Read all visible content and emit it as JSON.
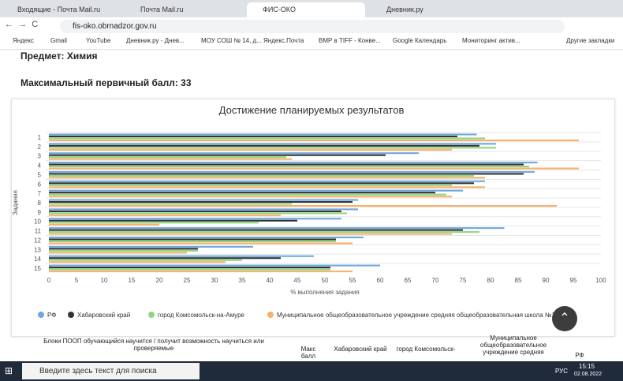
{
  "browser": {
    "tabs": [
      "Входящие - Почта Mail.ru",
      "Почта Mail.ru",
      "ФИС-ОКО",
      "Дневник.ру"
    ],
    "url": "fis-oko.obrnadzor.gov.ru",
    "bookmarks": [
      "Яндекс",
      "Gmail",
      "YouTube",
      "Дневник.ру - Днев...",
      "МОУ СОШ № 14, д...",
      "Яндекс.Почта",
      "ВМР в TIFF - Конве...",
      "Google Календарь",
      "Мониторинг актив...",
      "Другие закладки"
    ]
  },
  "page": {
    "subject": "Предмет: Химия",
    "max_score": "Максимальный первичный балл: 33"
  },
  "chart_data": {
    "type": "bar",
    "orientation": "horizontal",
    "title": "Достижение планируемых результатов",
    "y_label": "Задания",
    "x_label": "% выполнения задания",
    "categories": [
      "1",
      "2",
      "3",
      "4",
      "5",
      "6",
      "7",
      "8",
      "9",
      "10",
      "11",
      "12",
      "13",
      "14",
      "15"
    ],
    "series": [
      {
        "name": "РФ",
        "color": "#6fa8dc",
        "values": [
          77.5,
          81,
          67,
          88.5,
          88,
          79,
          75,
          56,
          56,
          53,
          82.5,
          57,
          37,
          48,
          60
        ]
      },
      {
        "name": "Хабаровский край",
        "color": "#333333",
        "values": [
          74,
          78,
          61,
          86,
          86,
          77,
          70,
          55,
          53,
          45,
          75,
          52,
          27,
          42,
          51
        ]
      },
      {
        "name": "город Комсомольск-на-Амуре",
        "color": "#93d680",
        "values": [
          79,
          81,
          43,
          87,
          77,
          73,
          72,
          44,
          54,
          38,
          78,
          52,
          27,
          35,
          51
        ]
      },
      {
        "name": "Муниципальное общеобразовательное учреждение средняя общеобразовательная школа №14",
        "color": "#f6b26b",
        "values": [
          96,
          73,
          44,
          96,
          79,
          79,
          73,
          92,
          42,
          20,
          73,
          55,
          25,
          32,
          55
        ]
      }
    ],
    "xlim": [
      0,
      100
    ],
    "xticks": [
      0,
      5,
      10,
      15,
      20,
      25,
      30,
      35,
      40,
      45,
      50,
      55,
      60,
      65,
      70,
      75,
      80,
      85,
      90,
      95,
      100
    ],
    "grid": false,
    "legend": "bottom"
  },
  "table": {
    "headers": [
      "Блоки ПООП обучающийся научится / получит возможность научиться или проверяемые",
      "Макс балл",
      "Хабаровский край",
      "город Комсомольск-",
      "Муниципальное общеобразовательное учреждение средняя",
      "РФ"
    ]
  },
  "taskbar": {
    "search": "Введите здесь текст для поиска",
    "lang": "РУС",
    "time": "15:15",
    "date": "02.08.2022"
  }
}
